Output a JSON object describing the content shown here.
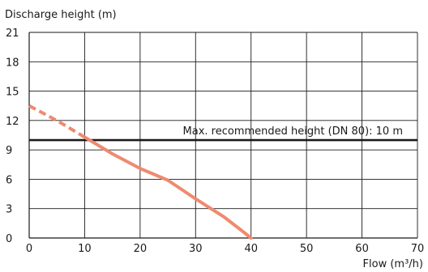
{
  "chart_data": {
    "type": "line",
    "xlabel": "Flow (m³/h)",
    "ylabel": "Discharge height (m)",
    "xlim": [
      0,
      70
    ],
    "ylim": [
      0,
      21
    ],
    "x_ticks": [
      0,
      10,
      20,
      30,
      40,
      50,
      60,
      70
    ],
    "y_ticks": [
      0,
      3,
      6,
      9,
      12,
      15,
      18,
      21
    ],
    "grid": true,
    "curve_color": "#ef8a6f",
    "reference_color": "#1a1a1a",
    "series": [
      {
        "style": "dashed",
        "x": [
          0,
          5,
          10
        ],
        "y": [
          13.5,
          12.0,
          10.3
        ]
      },
      {
        "style": "solid",
        "x": [
          10,
          15,
          20,
          25,
          30,
          35,
          38,
          40
        ],
        "y": [
          10.3,
          8.6,
          7.1,
          5.9,
          4.0,
          2.2,
          0.9,
          0
        ]
      }
    ],
    "reference_line": {
      "y": 10,
      "label": "Max. recommended height (DN 80): 10 m"
    }
  }
}
